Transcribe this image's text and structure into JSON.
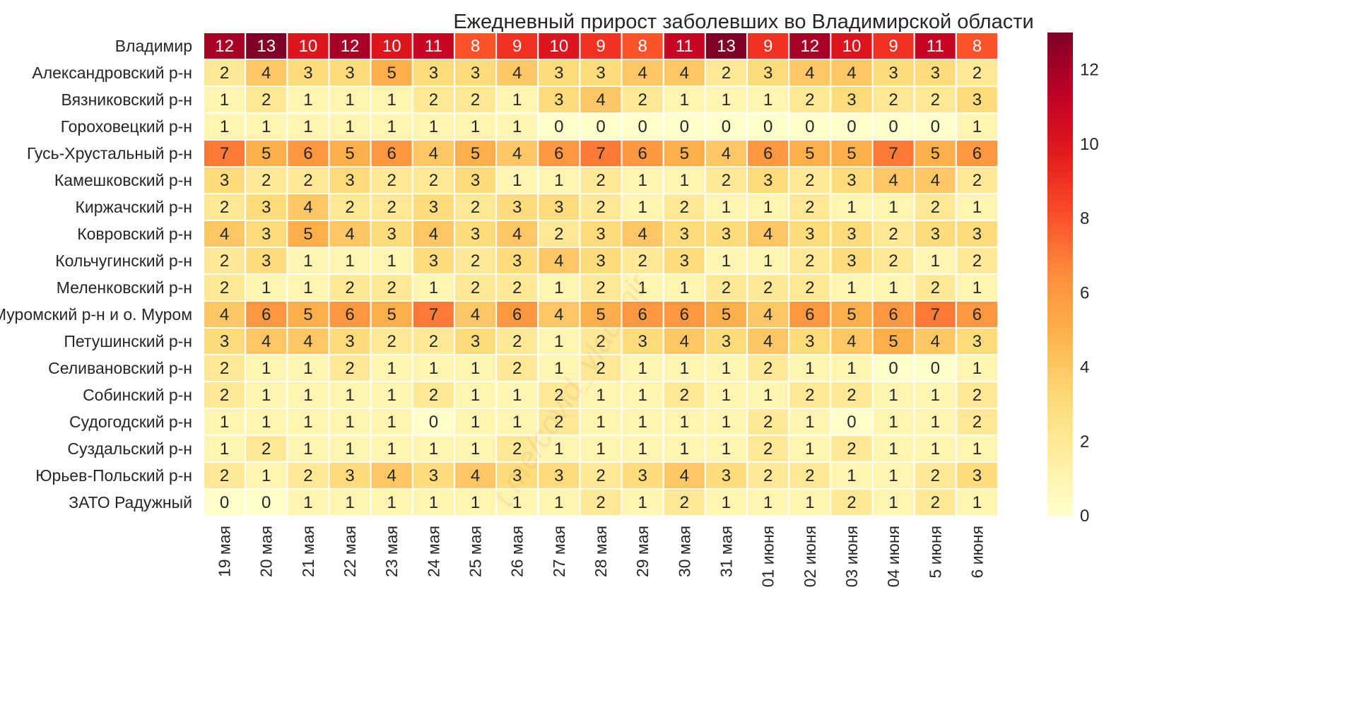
{
  "chart_data": {
    "type": "heatmap",
    "title": "Ежедневный прирост заболевших во Владимирской области",
    "watermark": "t.me/covid_vladimir",
    "x_labels": [
      "19 мая",
      "20 мая",
      "21 мая",
      "22 мая",
      "23 мая",
      "24 мая",
      "25 мая",
      "26 мая",
      "27 мая",
      "28 мая",
      "29 мая",
      "30 мая",
      "31 мая",
      "01 июня",
      "02 июня",
      "03 июня",
      "04 июня",
      "5 июня",
      "6 июня"
    ],
    "y_labels": [
      "Владимир",
      "Александровский р-н",
      "Вязниковский р-н",
      "Гороховецкий р-н",
      "Гусь-Хрустальный р-н",
      "Камешковский р-н",
      "Киржачский р-н",
      "Ковровский р-н",
      "Кольчугинский р-н",
      "Меленковский р-н",
      "Муромский р-н и о. Муром",
      "Петушинский р-н",
      "Селивановский р-н",
      "Собинский р-н",
      "Судогодский р-н",
      "Суздальский р-н",
      "Юрьев-Польский р-н",
      "ЗАТО Радужный"
    ],
    "values": [
      [
        12,
        13,
        10,
        12,
        10,
        11,
        8,
        9,
        10,
        9,
        8,
        11,
        13,
        9,
        12,
        10,
        9,
        11,
        8
      ],
      [
        2,
        4,
        3,
        3,
        5,
        3,
        3,
        4,
        3,
        3,
        4,
        4,
        2,
        3,
        4,
        4,
        3,
        3,
        2
      ],
      [
        1,
        2,
        1,
        1,
        1,
        2,
        2,
        1,
        3,
        4,
        2,
        1,
        1,
        1,
        2,
        3,
        2,
        2,
        3
      ],
      [
        1,
        1,
        1,
        1,
        1,
        1,
        1,
        1,
        0,
        0,
        0,
        0,
        0,
        0,
        0,
        0,
        0,
        0,
        1
      ],
      [
        7,
        5,
        6,
        5,
        6,
        4,
        5,
        4,
        6,
        7,
        6,
        5,
        4,
        6,
        5,
        5,
        7,
        5,
        6
      ],
      [
        3,
        2,
        2,
        3,
        2,
        2,
        3,
        1,
        1,
        2,
        1,
        1,
        2,
        3,
        2,
        3,
        4,
        4,
        2
      ],
      [
        2,
        3,
        4,
        2,
        2,
        3,
        2,
        3,
        3,
        2,
        1,
        2,
        1,
        1,
        2,
        1,
        1,
        2,
        1
      ],
      [
        4,
        3,
        5,
        4,
        3,
        4,
        3,
        4,
        2,
        3,
        4,
        3,
        3,
        4,
        3,
        3,
        2,
        3,
        3
      ],
      [
        2,
        3,
        1,
        1,
        1,
        3,
        2,
        3,
        4,
        3,
        2,
        3,
        1,
        1,
        2,
        3,
        2,
        1,
        2
      ],
      [
        2,
        1,
        1,
        2,
        2,
        1,
        2,
        2,
        1,
        2,
        1,
        1,
        2,
        2,
        2,
        1,
        1,
        2,
        1
      ],
      [
        4,
        6,
        5,
        6,
        5,
        7,
        4,
        6,
        4,
        5,
        6,
        6,
        5,
        4,
        6,
        5,
        6,
        7,
        6
      ],
      [
        3,
        4,
        4,
        3,
        2,
        2,
        3,
        2,
        1,
        2,
        3,
        4,
        3,
        4,
        3,
        4,
        5,
        4,
        3
      ],
      [
        2,
        1,
        1,
        2,
        1,
        1,
        1,
        2,
        1,
        2,
        1,
        1,
        1,
        2,
        1,
        1,
        0,
        0,
        1
      ],
      [
        2,
        1,
        1,
        1,
        1,
        2,
        1,
        1,
        2,
        1,
        1,
        2,
        1,
        1,
        2,
        2,
        1,
        1,
        2
      ],
      [
        1,
        1,
        1,
        1,
        1,
        0,
        1,
        1,
        2,
        1,
        1,
        1,
        1,
        2,
        1,
        0,
        1,
        1,
        2
      ],
      [
        1,
        2,
        1,
        1,
        1,
        1,
        1,
        2,
        1,
        1,
        1,
        1,
        1,
        2,
        1,
        2,
        1,
        1,
        1
      ],
      [
        2,
        1,
        2,
        3,
        4,
        3,
        4,
        3,
        3,
        2,
        3,
        4,
        3,
        2,
        2,
        1,
        1,
        2,
        3
      ],
      [
        0,
        0,
        1,
        1,
        1,
        1,
        1,
        1,
        1,
        2,
        1,
        2,
        1,
        1,
        1,
        2,
        1,
        2,
        1
      ]
    ],
    "colorbar": {
      "min": 0,
      "max": 13,
      "ticks": [
        0,
        2,
        4,
        6,
        8,
        10,
        12
      ]
    },
    "colormap": "YlOrRd",
    "colors": [
      "#ffffcc",
      "#ffeda0",
      "#fed976",
      "#feb24c",
      "#fd8d3c",
      "#fc4e2a",
      "#e31a1c",
      "#bd0026",
      "#800026"
    ],
    "cell_border_color": "#ffffff"
  }
}
